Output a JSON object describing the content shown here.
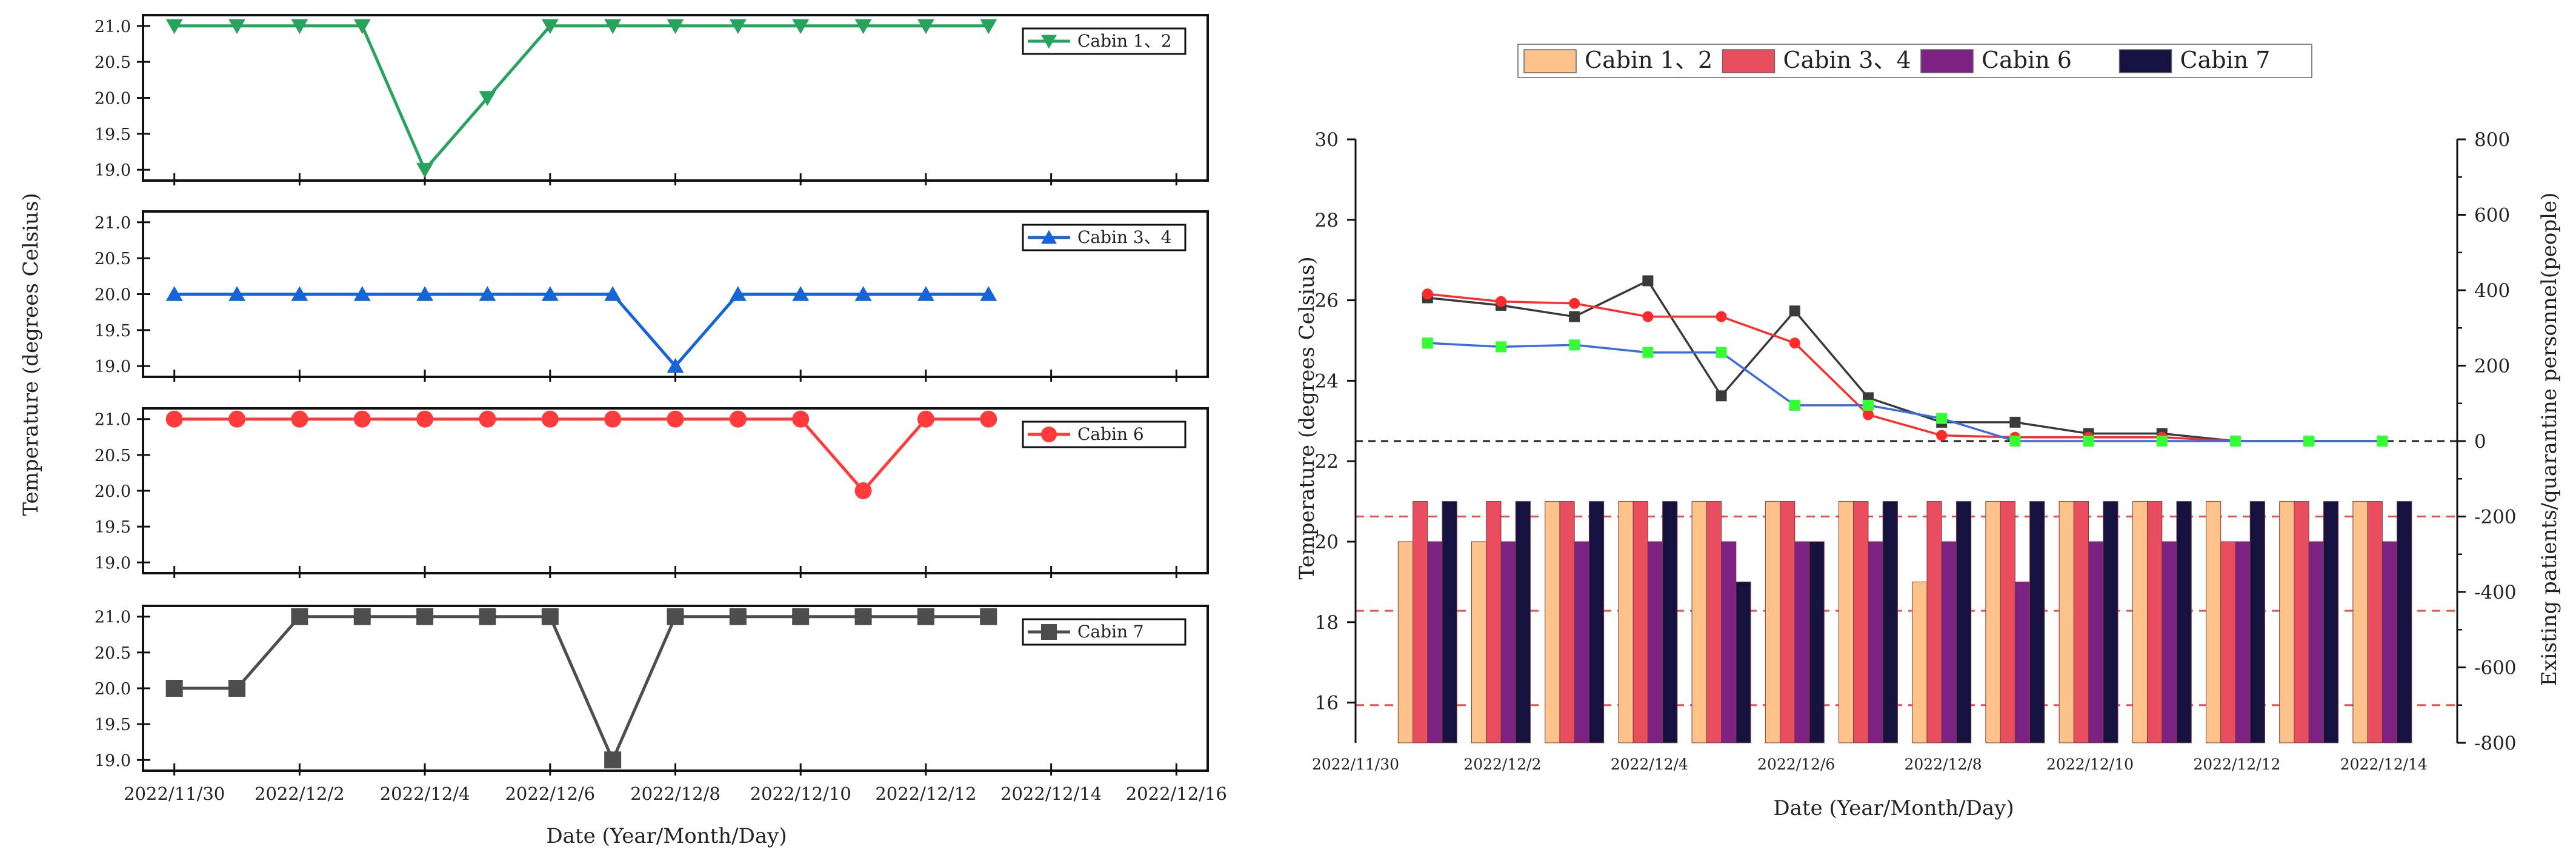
{
  "colors": {
    "green": "#27A35E",
    "blue": "#1565D8",
    "red": "#FF3B3B",
    "dark": "#4D4D4D",
    "bar_peach": "#FFC28A",
    "bar_red": "#E84E5E",
    "bar_purple": "#7B2283",
    "bar_navy": "#161240",
    "line_black": "#3A3A3A",
    "line_red": "#FF2A2A",
    "line_blue": "#3A6BE0",
    "marker_green": "#33FF33",
    "zero_line": "#222222",
    "ref_red": "#F05050"
  },
  "chart_data": [
    {
      "type": "line",
      "layout": "four stacked panels, shared x axis",
      "xlabel": "Date (Year/Month/Day)",
      "ylabel": "Temperature (degrees Celsius)",
      "x_tick_labels": [
        "2022/11/30",
        "2022/12/2",
        "2022/12/4",
        "2022/12/6",
        "2022/12/8",
        "2022/12/10",
        "2022/12/12",
        "2022/12/14",
        "2022/12/16"
      ],
      "xlim_days": [
        -0.5,
        16.5
      ],
      "y_ticks": [
        "19.0",
        "19.5",
        "20.0",
        "20.5",
        "21.0"
      ],
      "ylim": [
        18.85,
        21.15
      ],
      "panels": [
        {
          "name": "Cabin 1、2",
          "legend": "Cabin 1、2",
          "marker": "triangle-down",
          "color_key": "green",
          "x_days": [
            0,
            1,
            2,
            3,
            4,
            5,
            6,
            7,
            8,
            9,
            10,
            11,
            12,
            13
          ],
          "values": [
            21.0,
            21.0,
            21.0,
            21.0,
            19.0,
            20.0,
            21.0,
            21.0,
            21.0,
            21.0,
            21.0,
            21.0,
            21.0,
            21.0
          ]
        },
        {
          "name": "Cabin 3、4",
          "legend": "Cabin 3、4",
          "marker": "triangle-up",
          "color_key": "blue",
          "x_days": [
            0,
            1,
            2,
            3,
            4,
            5,
            6,
            7,
            8,
            9,
            10,
            11,
            12,
            13
          ],
          "values": [
            20.0,
            20.0,
            20.0,
            20.0,
            20.0,
            20.0,
            20.0,
            20.0,
            19.0,
            20.0,
            20.0,
            20.0,
            20.0,
            20.0
          ]
        },
        {
          "name": "Cabin 6",
          "legend": "Cabin 6",
          "marker": "circle",
          "color_key": "red",
          "x_days": [
            0,
            1,
            2,
            3,
            4,
            5,
            6,
            7,
            8,
            9,
            10,
            11,
            12,
            13
          ],
          "values": [
            21.0,
            21.0,
            21.0,
            21.0,
            21.0,
            21.0,
            21.0,
            21.0,
            21.0,
            21.0,
            21.0,
            20.0,
            21.0,
            21.0
          ]
        },
        {
          "name": "Cabin 7",
          "legend": "Cabin 7",
          "marker": "square",
          "color_key": "dark",
          "x_days": [
            0,
            1,
            2,
            3,
            4,
            5,
            6,
            7,
            8,
            9,
            10,
            11,
            12,
            13
          ],
          "values": [
            20.0,
            20.0,
            21.0,
            21.0,
            21.0,
            21.0,
            21.0,
            19.0,
            21.0,
            21.0,
            21.0,
            21.0,
            21.0,
            21.0
          ]
        }
      ]
    },
    {
      "type": "bar+line",
      "xlabel": "Date (Year/Month/Day)",
      "ylabel_left": "Temperature (degrees Celsius)",
      "ylabel_right": "Existing patients/quarantine personnel(people)",
      "x_tick_labels": [
        "2022/11/30",
        "2022/12/2",
        "2022/12/4",
        "2022/12/6",
        "2022/12/8",
        "2022/12/10",
        "2022/12/12",
        "2022/12/14"
      ],
      "left_ylim": [
        15,
        30
      ],
      "left_ticks": [
        "16",
        "18",
        "20",
        "22",
        "24",
        "26",
        "28",
        "30"
      ],
      "right_ylim": [
        -800,
        800
      ],
      "right_ticks": [
        "-800",
        "-600",
        "-400",
        "-200",
        "0",
        "200",
        "400",
        "600",
        "800"
      ],
      "bar_base": 15,
      "zero_reference_line": 0,
      "red_dashed_reference_lines": [
        -200,
        -450,
        -700
      ],
      "legend": [
        "Cabin 1、2",
        "Cabin 3、4",
        "Cabin 6",
        "Cabin 7"
      ],
      "bar_series": [
        {
          "name": "Cabin 1、2",
          "color_key": "bar_peach",
          "values": [
            20,
            20,
            21,
            21,
            21,
            21,
            21,
            19,
            21,
            21,
            21,
            21,
            21,
            21
          ]
        },
        {
          "name": "Cabin 3、4",
          "color_key": "bar_red",
          "values": [
            21,
            21,
            21,
            21,
            21,
            21,
            21,
            21,
            21,
            21,
            21,
            20,
            21,
            21
          ]
        },
        {
          "name": "Cabin 6",
          "color_key": "bar_purple",
          "values": [
            20,
            20,
            20,
            20,
            20,
            20,
            20,
            20,
            19,
            20,
            20,
            20,
            20,
            20
          ]
        },
        {
          "name": "Cabin 7",
          "color_key": "bar_navy",
          "values": [
            21,
            21,
            21,
            21,
            19,
            20,
            21,
            21,
            21,
            21,
            21,
            21,
            21,
            21
          ]
        }
      ],
      "line_series": [
        {
          "name": "series-black",
          "color_key": "line_black",
          "marker": "square",
          "marker_color_key": "line_black",
          "values": [
            380,
            360,
            330,
            425,
            120,
            345,
            115,
            50,
            50,
            20,
            20,
            0,
            0,
            0
          ]
        },
        {
          "name": "series-red",
          "color_key": "line_red",
          "marker": "circle",
          "marker_color_key": "line_red",
          "values": [
            390,
            370,
            365,
            330,
            330,
            260,
            70,
            15,
            10,
            10,
            10,
            0,
            0,
            0
          ]
        },
        {
          "name": "series-blue",
          "color_key": "line_blue",
          "marker": "square",
          "marker_color_key": "marker_green",
          "values": [
            260,
            250,
            255,
            235,
            235,
            95,
            95,
            60,
            0,
            0,
            0,
            0,
            0,
            0
          ]
        }
      ]
    }
  ]
}
